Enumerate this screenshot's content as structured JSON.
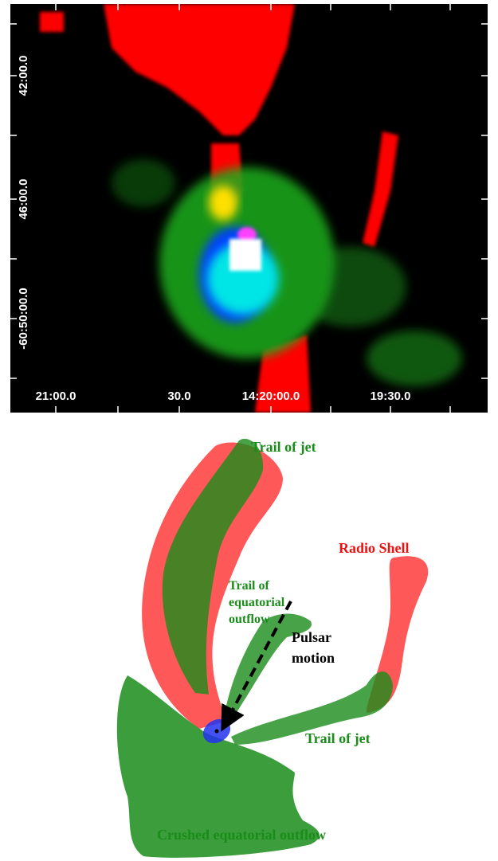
{
  "image_panel": {
    "y_axis_labels": [
      "42:00.0",
      "46:00.0",
      "-60:50:00.0"
    ],
    "x_axis_labels": [
      "21:00.0",
      "30.0",
      "14:20:00.0",
      "19:30.0"
    ]
  },
  "diagram": {
    "jet_trail_top": "Trail of jet",
    "radio_shell": "Radio Shell",
    "equatorial_trail": [
      "Trail of",
      "equatorial",
      "outflow"
    ],
    "pulsar_motion": [
      "Pulsar",
      "motion"
    ],
    "jet_trail_right": "Trail of jet",
    "crushed_outflow": "Crushed equatorial outflow"
  }
}
